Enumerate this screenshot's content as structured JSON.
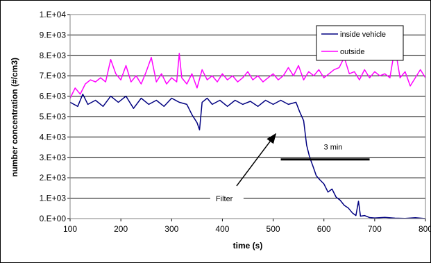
{
  "chart_data": {
    "type": "line",
    "title": "",
    "xlabel": "time (s)",
    "ylabel": "number concentration (#/cm3)",
    "xlim": [
      100,
      800
    ],
    "ylim": [
      0,
      10000
    ],
    "x_ticks": [
      100,
      200,
      300,
      400,
      500,
      600,
      700,
      800
    ],
    "x_tick_labels": [
      "100",
      "200",
      "300",
      "400",
      "500",
      "600",
      "700",
      "800"
    ],
    "y_ticks": [
      0,
      1000,
      2000,
      3000,
      4000,
      5000,
      6000,
      7000,
      8000,
      9000,
      10000
    ],
    "y_tick_labels": [
      "0.E+00",
      "1.E+03",
      "2.E+03",
      "3.E+03",
      "4.E+03",
      "5.E+03",
      "6.E+03",
      "7.E+03",
      "8.E+03",
      "9.E+03",
      "1.E+04"
    ],
    "grid": "horizontal",
    "legend_position": "top-right",
    "series": [
      {
        "name": "inside vehicle",
        "color": "#000080",
        "points": [
          [
            100,
            5700
          ],
          [
            115,
            5500
          ],
          [
            125,
            6100
          ],
          [
            135,
            5600
          ],
          [
            150,
            5800
          ],
          [
            165,
            5500
          ],
          [
            180,
            6000
          ],
          [
            195,
            5700
          ],
          [
            210,
            6000
          ],
          [
            225,
            5400
          ],
          [
            240,
            5900
          ],
          [
            255,
            5600
          ],
          [
            270,
            5800
          ],
          [
            285,
            5500
          ],
          [
            300,
            5900
          ],
          [
            315,
            5700
          ],
          [
            330,
            5600
          ],
          [
            340,
            5100
          ],
          [
            350,
            4700
          ],
          [
            355,
            4350
          ],
          [
            360,
            5700
          ],
          [
            370,
            5900
          ],
          [
            380,
            5600
          ],
          [
            395,
            5800
          ],
          [
            410,
            5500
          ],
          [
            425,
            5800
          ],
          [
            440,
            5600
          ],
          [
            455,
            5750
          ],
          [
            470,
            5500
          ],
          [
            485,
            5800
          ],
          [
            500,
            5600
          ],
          [
            515,
            5800
          ],
          [
            530,
            5600
          ],
          [
            545,
            5700
          ],
          [
            552,
            5250
          ],
          [
            560,
            4800
          ],
          [
            566,
            3600
          ],
          [
            572,
            3000
          ],
          [
            578,
            2600
          ],
          [
            585,
            2100
          ],
          [
            592,
            1900
          ],
          [
            600,
            1700
          ],
          [
            608,
            1300
          ],
          [
            616,
            1450
          ],
          [
            624,
            1050
          ],
          [
            632,
            900
          ],
          [
            640,
            650
          ],
          [
            648,
            520
          ],
          [
            656,
            280
          ],
          [
            663,
            150
          ],
          [
            668,
            850
          ],
          [
            672,
            120
          ],
          [
            680,
            150
          ],
          [
            690,
            50
          ],
          [
            700,
            30
          ],
          [
            720,
            60
          ],
          [
            740,
            20
          ],
          [
            760,
            10
          ],
          [
            780,
            40
          ],
          [
            800,
            0
          ]
        ]
      },
      {
        "name": "outside",
        "color": "#ff00ff",
        "points": [
          [
            100,
            5900
          ],
          [
            110,
            6400
          ],
          [
            120,
            6100
          ],
          [
            130,
            6600
          ],
          [
            140,
            6800
          ],
          [
            150,
            6700
          ],
          [
            160,
            6900
          ],
          [
            170,
            6700
          ],
          [
            180,
            7800
          ],
          [
            190,
            7100
          ],
          [
            200,
            6800
          ],
          [
            210,
            7500
          ],
          [
            220,
            6700
          ],
          [
            230,
            7000
          ],
          [
            240,
            6600
          ],
          [
            250,
            7200
          ],
          [
            260,
            7900
          ],
          [
            270,
            6700
          ],
          [
            280,
            7100
          ],
          [
            290,
            6600
          ],
          [
            300,
            6900
          ],
          [
            310,
            6700
          ],
          [
            315,
            8100
          ],
          [
            320,
            6900
          ],
          [
            330,
            6600
          ],
          [
            340,
            7100
          ],
          [
            350,
            6400
          ],
          [
            360,
            7300
          ],
          [
            370,
            6800
          ],
          [
            380,
            7000
          ],
          [
            390,
            6700
          ],
          [
            400,
            7100
          ],
          [
            410,
            6800
          ],
          [
            420,
            7000
          ],
          [
            430,
            6700
          ],
          [
            440,
            6900
          ],
          [
            450,
            7200
          ],
          [
            460,
            6800
          ],
          [
            470,
            7000
          ],
          [
            480,
            6700
          ],
          [
            490,
            6900
          ],
          [
            500,
            7100
          ],
          [
            510,
            6800
          ],
          [
            520,
            7000
          ],
          [
            530,
            7400
          ],
          [
            540,
            7000
          ],
          [
            550,
            7500
          ],
          [
            560,
            6800
          ],
          [
            570,
            7200
          ],
          [
            580,
            7000
          ],
          [
            590,
            7300
          ],
          [
            600,
            6900
          ],
          [
            610,
            7100
          ],
          [
            620,
            7300
          ],
          [
            630,
            7400
          ],
          [
            640,
            7900
          ],
          [
            650,
            7100
          ],
          [
            660,
            7200
          ],
          [
            670,
            6800
          ],
          [
            680,
            7300
          ],
          [
            690,
            6900
          ],
          [
            700,
            7200
          ],
          [
            710,
            7000
          ],
          [
            720,
            7100
          ],
          [
            730,
            6900
          ],
          [
            740,
            8400
          ],
          [
            750,
            6900
          ],
          [
            760,
            7200
          ],
          [
            770,
            6500
          ],
          [
            780,
            6900
          ],
          [
            790,
            7300
          ],
          [
            800,
            6900
          ]
        ]
      }
    ],
    "annotations": {
      "filter_label": "Filter",
      "filter_arrow": {
        "from": [
          428,
          1600
        ],
        "to": [
          505,
          4150
        ]
      },
      "duration_label": "3 min",
      "duration_bar": {
        "x1": 515,
        "x2": 690,
        "y": 2900
      }
    }
  }
}
